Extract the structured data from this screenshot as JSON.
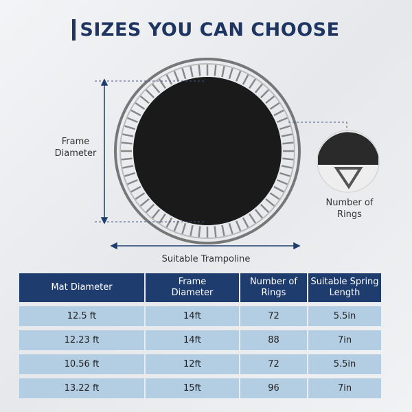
{
  "title": "SIZES YOU CAN CHOOSE",
  "diagram": {
    "frame_label": "Frame Diameter",
    "bottom_label": "Suitable Trampoline",
    "inset_label": "Number of Rings"
  },
  "table": {
    "header": [
      "Mat Diameter",
      "Frame Diameter",
      "Number of Rings",
      "Suitable Spring Length"
    ],
    "rows": [
      [
        "12.5 ft",
        "14ft",
        "72",
        "5.5in"
      ],
      [
        "12.23 ft",
        "14ft",
        "88",
        "7in"
      ],
      [
        "10.56 ft",
        "12ft",
        "72",
        "5.5in"
      ],
      [
        "13.22 ft",
        "15ft",
        "96",
        "7in"
      ]
    ]
  }
}
